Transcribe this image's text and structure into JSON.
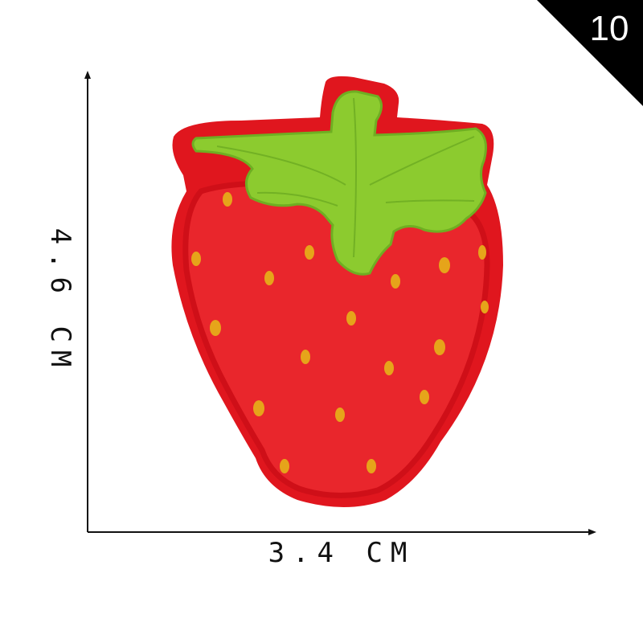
{
  "badge": {
    "number": "10",
    "bg_color": "#000000",
    "text_color": "#ffffff"
  },
  "dimensions": {
    "width_label": "3.4 CM",
    "height_label": "4.6 CM"
  },
  "patch": {
    "subject": "strawberry",
    "colors": {
      "body": "#e8232a",
      "border": "#d5111a",
      "leaves": "#8ccb2f",
      "leaves_dark": "#5e9c1c",
      "seeds": "#e2a21a"
    }
  }
}
